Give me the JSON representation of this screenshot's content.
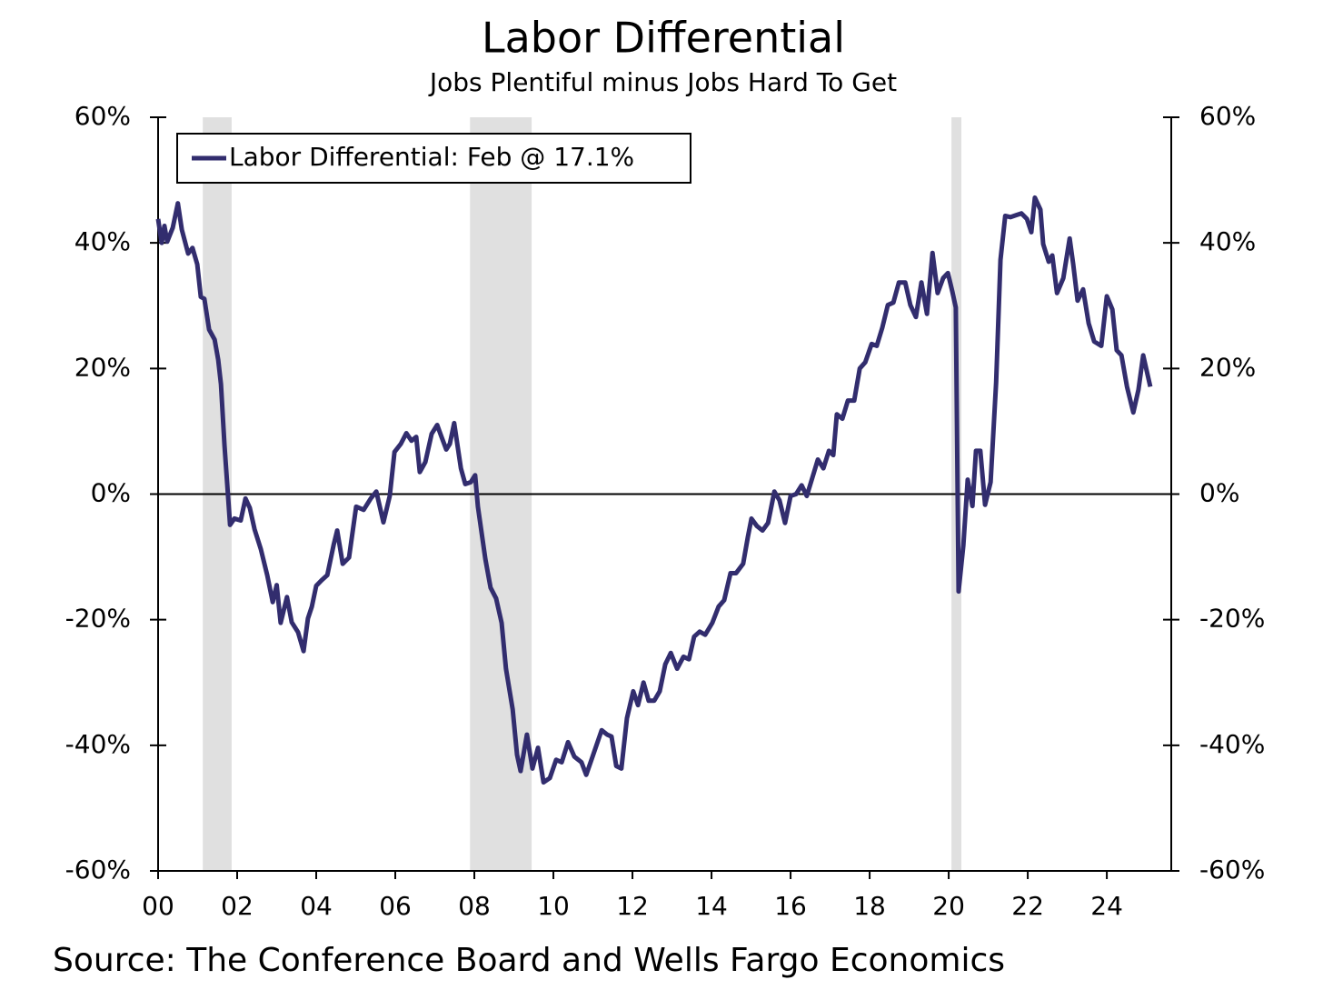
{
  "chart_data": {
    "type": "line",
    "title": "Labor Differential",
    "subtitle": "Jobs Plentiful minus Jobs Hard To Get",
    "source": "Source: The Conference Board and Wells Fargo Economics",
    "x": [
      2000.0,
      2000.09,
      2000.16,
      2000.23,
      2000.37,
      2000.5,
      2000.6,
      2000.76,
      2000.87,
      2000.99,
      2001.08,
      2001.17,
      2001.29,
      2001.43,
      2001.52,
      2001.59,
      2001.68,
      2001.82,
      2001.93,
      2002.09,
      2002.21,
      2002.32,
      2002.44,
      2002.6,
      2002.76,
      2002.9,
      2003.0,
      2003.1,
      2003.26,
      2003.38,
      2003.54,
      2003.68,
      2003.79,
      2003.89,
      2004.0,
      2004.14,
      2004.28,
      2004.44,
      2004.53,
      2004.67,
      2004.83,
      2005.01,
      2005.2,
      2005.38,
      2005.52,
      2005.7,
      2005.86,
      2005.98,
      2006.14,
      2006.28,
      2006.41,
      2006.53,
      2006.62,
      2006.76,
      2006.92,
      2007.06,
      2007.17,
      2007.29,
      2007.38,
      2007.49,
      2007.66,
      2007.77,
      2007.91,
      2008.02,
      2008.09,
      2008.28,
      2008.41,
      2008.55,
      2008.69,
      2008.8,
      2008.97,
      2009.08,
      2009.17,
      2009.33,
      2009.47,
      2009.61,
      2009.75,
      2009.91,
      2010.07,
      2010.21,
      2010.37,
      2010.53,
      2010.71,
      2010.83,
      2010.99,
      2011.1,
      2011.22,
      2011.36,
      2011.47,
      2011.59,
      2011.72,
      2011.86,
      2012.02,
      2012.14,
      2012.28,
      2012.41,
      2012.55,
      2012.69,
      2012.83,
      2012.97,
      2013.13,
      2013.29,
      2013.43,
      2013.56,
      2013.7,
      2013.84,
      2014.02,
      2014.18,
      2014.32,
      2014.48,
      2014.62,
      2014.8,
      2014.92,
      2015.01,
      2015.15,
      2015.29,
      2015.43,
      2015.59,
      2015.72,
      2015.86,
      2016.0,
      2016.14,
      2016.28,
      2016.41,
      2016.55,
      2016.69,
      2016.83,
      2016.97,
      2017.08,
      2017.17,
      2017.31,
      2017.45,
      2017.61,
      2017.75,
      2017.89,
      2018.05,
      2018.18,
      2018.32,
      2018.46,
      2018.6,
      2018.74,
      2018.9,
      2019.03,
      2019.17,
      2019.31,
      2019.45,
      2019.59,
      2019.72,
      2019.86,
      2019.98,
      2020.09,
      2020.18,
      2020.25,
      2020.37,
      2020.48,
      2020.6,
      2020.69,
      2020.8,
      2020.92,
      2021.06,
      2021.2,
      2021.31,
      2021.43,
      2021.56,
      2021.7,
      2021.84,
      2021.98,
      2022.09,
      2022.18,
      2022.32,
      2022.39,
      2022.53,
      2022.62,
      2022.74,
      2022.9,
      2023.06,
      2023.15,
      2023.26,
      2023.4,
      2023.54,
      2023.68,
      2023.86,
      2024.0,
      2024.14,
      2024.25,
      2024.37,
      2024.51,
      2024.67,
      2024.8,
      2024.92,
      2025.1
    ],
    "series": [
      {
        "name": "Labor Differential: Feb @ 17.1%",
        "color": "#322d6e",
        "values": [
          43.8,
          40,
          42.7,
          40.2,
          42.4,
          46.3,
          42.1,
          38.3,
          39.2,
          36.6,
          31.4,
          31.1,
          26.2,
          24.6,
          21.4,
          17.5,
          7.7,
          -4.9,
          -3.9,
          -4.2,
          -0.7,
          -2.2,
          -5.6,
          -8.8,
          -12.9,
          -17.2,
          -14.5,
          -20.5,
          -16.4,
          -20.4,
          -22,
          -25,
          -19.8,
          -17.9,
          -14.6,
          -13.7,
          -12.9,
          -8.1,
          -5.8,
          -11.1,
          -10.1,
          -2,
          -2.5,
          -0.7,
          0.4,
          -4.5,
          -0.3,
          6.7,
          8,
          9.7,
          8.5,
          9.1,
          3.5,
          5.1,
          9.6,
          11,
          9.1,
          7.1,
          8,
          11.3,
          4.1,
          1.6,
          1.9,
          3,
          -2,
          -10.4,
          -14.9,
          -16.6,
          -20.5,
          -27.8,
          -34.3,
          -41.5,
          -44.1,
          -38.3,
          -43.7,
          -40.4,
          -45.9,
          -45.2,
          -42.3,
          -42.7,
          -39.5,
          -41.8,
          -42.7,
          -44.7,
          -41.8,
          -39.8,
          -37.6,
          -38.3,
          -38.6,
          -43.3,
          -43.7,
          -35.7,
          -31.4,
          -33.6,
          -30,
          -32.9,
          -32.9,
          -31.4,
          -27.1,
          -25.3,
          -27.8,
          -25.9,
          -26.3,
          -22.7,
          -21.9,
          -22.4,
          -20.5,
          -17.9,
          -16.9,
          -12.6,
          -12.6,
          -11.1,
          -6.8,
          -3.9,
          -5.1,
          -5.8,
          -4.6,
          0.4,
          -1,
          -4.6,
          -0.3,
          0,
          1.4,
          -0.3,
          2.6,
          5.5,
          4.1,
          6.9,
          6.2,
          12.7,
          12,
          14.9,
          14.9,
          20,
          21,
          23.9,
          23.6,
          26.5,
          30.1,
          30.5,
          33.7,
          33.7,
          30.1,
          28.2,
          33.7,
          28.7,
          38.4,
          32,
          34.4,
          35.2,
          32.3,
          29.7,
          -15.5,
          -8.2,
          2.3,
          -1.9,
          6.9,
          6.9,
          -1.7,
          1.9,
          17.8,
          37.3,
          44.3,
          44.1,
          44.4,
          44.7,
          43.8,
          41.7,
          47.2,
          45.3,
          39.8,
          37,
          38,
          32,
          34.4,
          40.7,
          36.6,
          30.8,
          32.6,
          27.2,
          24.3,
          23.6,
          31.5,
          29.4,
          22.9,
          22.1,
          17.1,
          13,
          16.6,
          22.1,
          17.1
        ]
      }
    ],
    "shaded_periods": [
      {
        "start": 2001.13,
        "end": 2001.86
      },
      {
        "start": 2007.89,
        "end": 2009.45
      },
      {
        "start": 2020.07,
        "end": 2020.32
      }
    ],
    "shade_color": "#e0e0e0",
    "xlim": [
      2000,
      2025.63
    ],
    "xticks": [
      {
        "value": 2000,
        "label": "00"
      },
      {
        "value": 2002,
        "label": "02"
      },
      {
        "value": 2004,
        "label": "04"
      },
      {
        "value": 2006,
        "label": "06"
      },
      {
        "value": 2008,
        "label": "08"
      },
      {
        "value": 2010,
        "label": "10"
      },
      {
        "value": 2012,
        "label": "12"
      },
      {
        "value": 2014,
        "label": "14"
      },
      {
        "value": 2016,
        "label": "16"
      },
      {
        "value": 2018,
        "label": "18"
      },
      {
        "value": 2020,
        "label": "20"
      },
      {
        "value": 2022,
        "label": "22"
      },
      {
        "value": 2024,
        "label": "24"
      }
    ],
    "ylim": [
      -60,
      60
    ],
    "yticks": [
      {
        "value": -60,
        "label": "-60%"
      },
      {
        "value": -40,
        "label": "-40%"
      },
      {
        "value": -20,
        "label": "-20%"
      },
      {
        "value": 0,
        "label": "0%"
      },
      {
        "value": 20,
        "label": "20%"
      },
      {
        "value": 40,
        "label": "40%"
      },
      {
        "value": 60,
        "label": "60%"
      }
    ],
    "y2lim": [
      -60,
      60
    ],
    "y2ticks": [
      {
        "value": -60,
        "label": "-60%"
      },
      {
        "value": -40,
        "label": "-40%"
      },
      {
        "value": -20,
        "label": "-20%"
      },
      {
        "value": 0,
        "label": "0%"
      },
      {
        "value": 20,
        "label": "20%"
      },
      {
        "value": 40,
        "label": "40%"
      },
      {
        "value": 60,
        "label": "60%"
      }
    ],
    "legend": "top-left"
  }
}
